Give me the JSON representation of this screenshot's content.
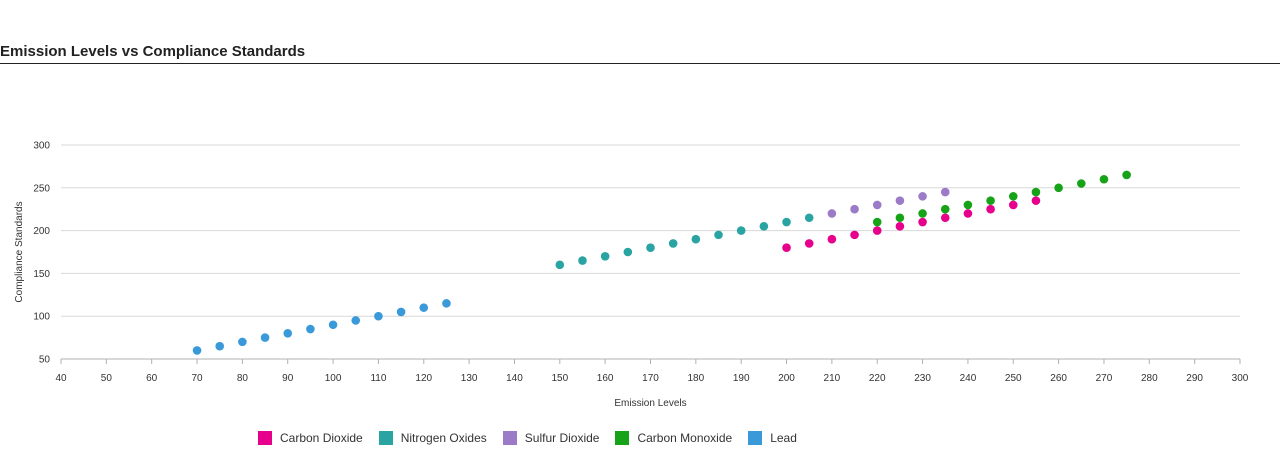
{
  "title": "Emission Levels vs Compliance Standards",
  "chart_data": {
    "type": "scatter",
    "title": "Emission Levels vs Compliance Standards",
    "xlabel": "Emission Levels",
    "ylabel": "Compliance Standards",
    "xlim": [
      40,
      300
    ],
    "ylim": [
      50,
      300
    ],
    "x_ticks": [
      40,
      50,
      60,
      70,
      80,
      90,
      100,
      110,
      120,
      130,
      140,
      150,
      160,
      170,
      180,
      190,
      200,
      210,
      220,
      230,
      240,
      250,
      260,
      270,
      280,
      290,
      300
    ],
    "y_ticks": [
      50,
      100,
      150,
      200,
      250,
      300
    ],
    "grid": "horizontal",
    "legend_position": "bottom-left",
    "series": [
      {
        "name": "Carbon Dioxide",
        "color": "#e6008c",
        "points": [
          [
            200,
            180
          ],
          [
            205,
            185
          ],
          [
            210,
            190
          ],
          [
            215,
            195
          ],
          [
            220,
            200
          ],
          [
            225,
            205
          ],
          [
            230,
            210
          ],
          [
            235,
            215
          ],
          [
            240,
            220
          ],
          [
            245,
            225
          ],
          [
            250,
            230
          ],
          [
            255,
            235
          ]
        ]
      },
      {
        "name": "Nitrogen Oxides",
        "color": "#2aa3a3",
        "points": [
          [
            150,
            160
          ],
          [
            155,
            165
          ],
          [
            160,
            170
          ],
          [
            165,
            175
          ],
          [
            170,
            180
          ],
          [
            175,
            185
          ],
          [
            180,
            190
          ],
          [
            185,
            195
          ],
          [
            190,
            200
          ],
          [
            195,
            205
          ],
          [
            200,
            210
          ],
          [
            205,
            215
          ]
        ]
      },
      {
        "name": "Sulfur Dioxide",
        "color": "#9b7ac8",
        "points": [
          [
            210,
            220
          ],
          [
            215,
            225
          ],
          [
            220,
            230
          ],
          [
            225,
            235
          ],
          [
            230,
            240
          ],
          [
            235,
            245
          ]
        ]
      },
      {
        "name": "Carbon Monoxide",
        "color": "#17a317",
        "points": [
          [
            220,
            210
          ],
          [
            225,
            215
          ],
          [
            230,
            220
          ],
          [
            235,
            225
          ],
          [
            240,
            230
          ],
          [
            245,
            235
          ],
          [
            250,
            240
          ],
          [
            255,
            245
          ],
          [
            260,
            250
          ],
          [
            265,
            255
          ],
          [
            270,
            260
          ],
          [
            275,
            265
          ]
        ]
      },
      {
        "name": "Lead",
        "color": "#3a9ad9",
        "points": [
          [
            70,
            60
          ],
          [
            75,
            65
          ],
          [
            80,
            70
          ],
          [
            85,
            75
          ],
          [
            90,
            80
          ],
          [
            95,
            85
          ],
          [
            100,
            90
          ],
          [
            105,
            95
          ],
          [
            110,
            100
          ],
          [
            115,
            105
          ],
          [
            120,
            110
          ],
          [
            125,
            115
          ]
        ]
      }
    ]
  }
}
